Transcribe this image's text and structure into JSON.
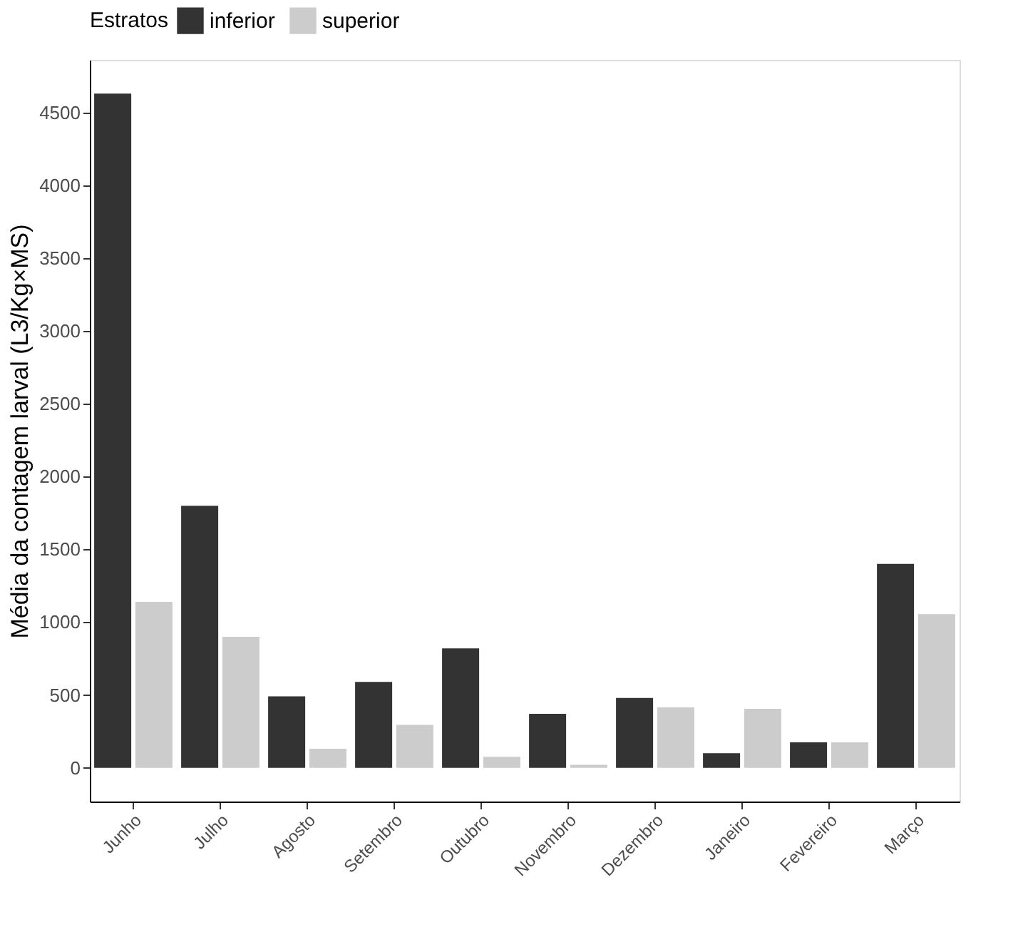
{
  "chart_data": {
    "type": "bar",
    "ylabel": "Média da contagem larval (L3/Kg×MS)",
    "legend_title": "Estratos",
    "categories": [
      "Junho",
      "Julho",
      "Agosto",
      "Setembro",
      "Outubro",
      "Novembro",
      "Dezembro",
      "Janeiro",
      "Fevereiro",
      "Março"
    ],
    "series": [
      {
        "name": "inferior",
        "color": "#333333",
        "values": [
          4630,
          1800,
          490,
          590,
          820,
          370,
          480,
          100,
          175,
          1400
        ]
      },
      {
        "name": "superior",
        "color": "#cccccc",
        "values": [
          1140,
          900,
          130,
          295,
          75,
          20,
          415,
          405,
          175,
          1055
        ]
      }
    ],
    "ylim": [
      -232,
      4862
    ],
    "yticks": [
      0,
      500,
      1000,
      1500,
      2000,
      2500,
      3000,
      3500,
      4000,
      4500
    ],
    "grid": false,
    "legend": "top"
  }
}
